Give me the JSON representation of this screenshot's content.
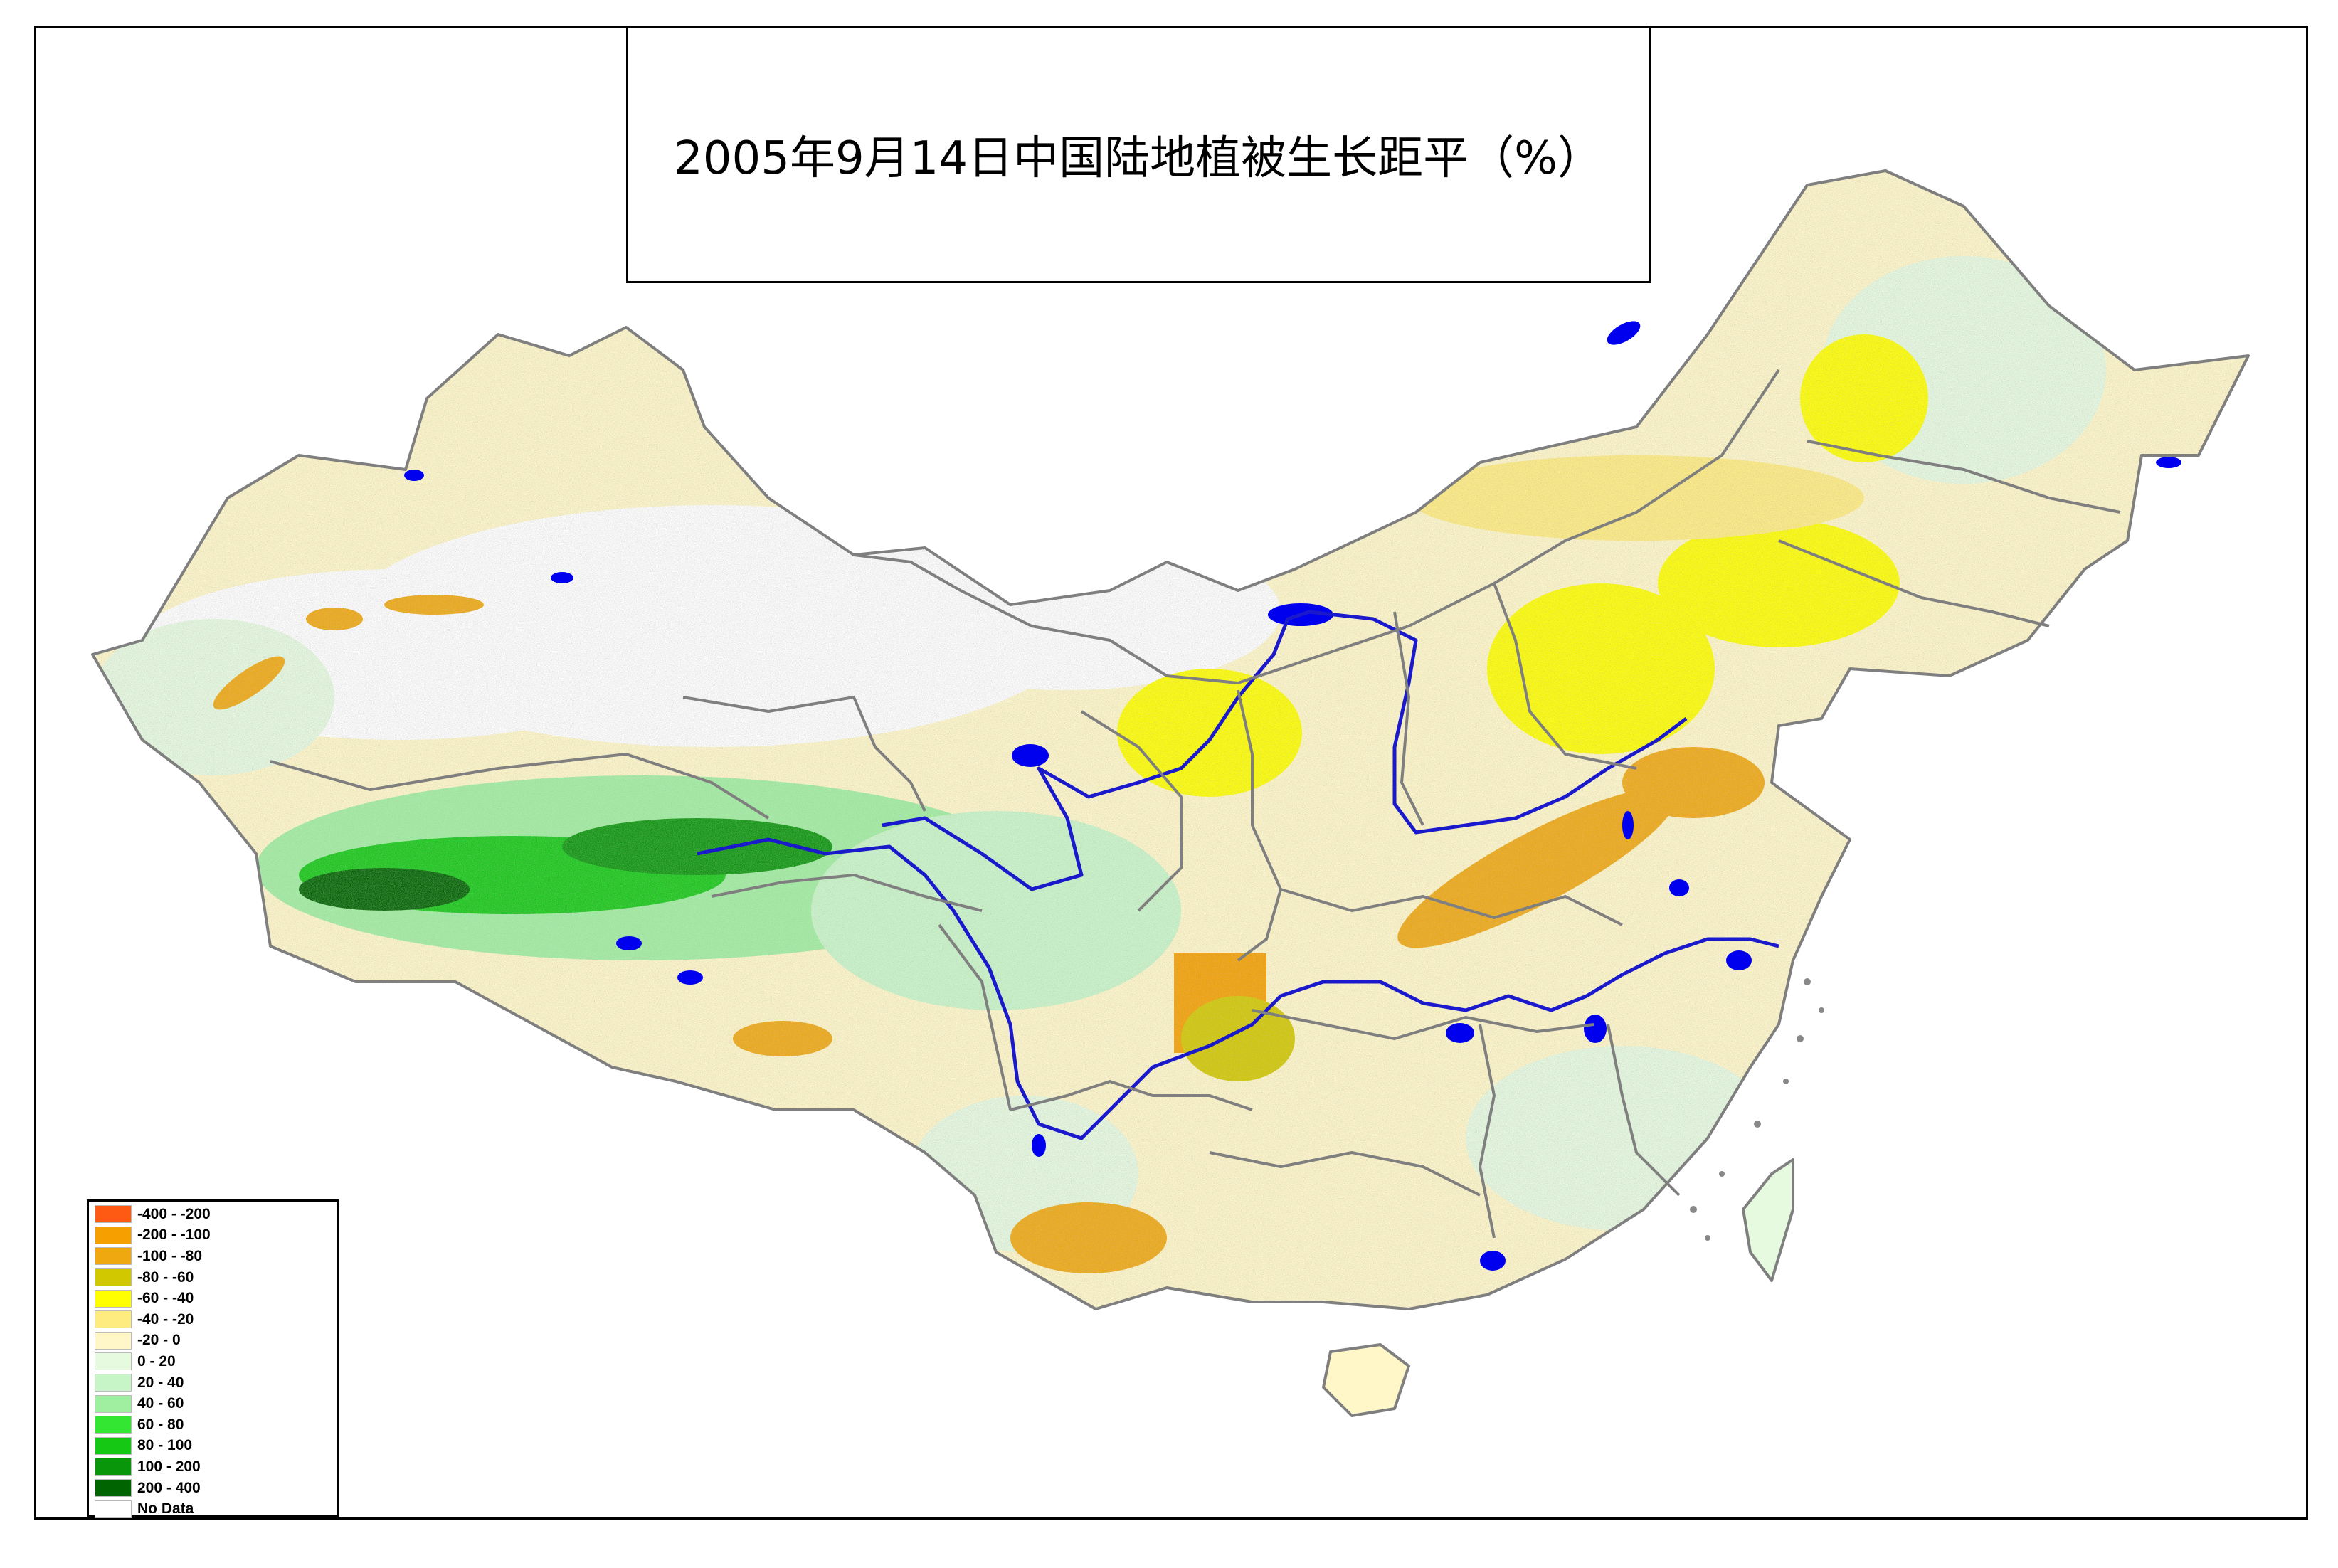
{
  "title": "2005年9月14日中国陆地植被生长距平（%）",
  "legend": [
    {
      "label": "-400 - -200",
      "color": "#ff5a14"
    },
    {
      "label": "-200 - -100",
      "color": "#f5a000"
    },
    {
      "label": "-100 - -80",
      "color": "#f0a810"
    },
    {
      "label": "-80 - -60",
      "color": "#d2c800"
    },
    {
      "label": "-60 - -40",
      "color": "#ffff00"
    },
    {
      "label": "-40 - -20",
      "color": "#ffec80"
    },
    {
      "label": "-20 - 0",
      "color": "#fff7c8"
    },
    {
      "label": "0 - 20",
      "color": "#e6fae0"
    },
    {
      "label": "20 - 40",
      "color": "#c8f5c8"
    },
    {
      "label": "40 - 60",
      "color": "#a0eea0"
    },
    {
      "label": "60 - 80",
      "color": "#32e632"
    },
    {
      "label": "80 - 100",
      "color": "#14c814"
    },
    {
      "label": "100 - 200",
      "color": "#0a960a"
    },
    {
      "label": "200 - 400",
      "color": "#006400"
    },
    {
      "label": "No Data",
      "color": "#ffffff"
    }
  ],
  "colors": {
    "boundary": "#7f7f7f",
    "water": "#0000ee",
    "frame": "#000000"
  }
}
